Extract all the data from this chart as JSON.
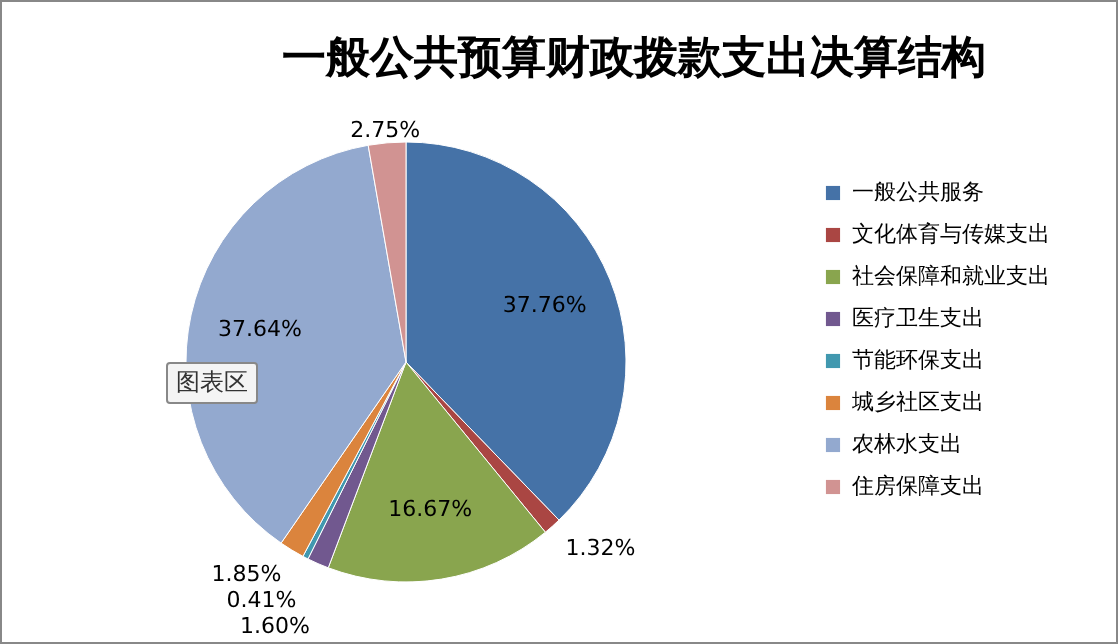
{
  "chart_data": {
    "type": "pie",
    "title": "一般公共预算财政拨款支出决算结构",
    "categories": [
      "一般公共服务",
      "文化体育与传媒支出",
      "社会保障和就业支出",
      "医疗卫生支出",
      "节能环保支出",
      "城乡社区支出",
      "农林水支出",
      "住房保障支出"
    ],
    "values": [
      37.76,
      1.32,
      16.67,
      1.6,
      0.41,
      1.85,
      37.64,
      2.75
    ],
    "colors": [
      "#4572a7",
      "#aa4643",
      "#89a54e",
      "#71588f",
      "#4198af",
      "#db843d",
      "#93a9cf",
      "#d19392"
    ],
    "value_labels": [
      "37.76%",
      "1.32%",
      "16.67%",
      "1.60%",
      "0.41%",
      "1.85%",
      "37.64%",
      "2.75%"
    ],
    "legend": "right",
    "annotations": [
      "图表区"
    ]
  }
}
